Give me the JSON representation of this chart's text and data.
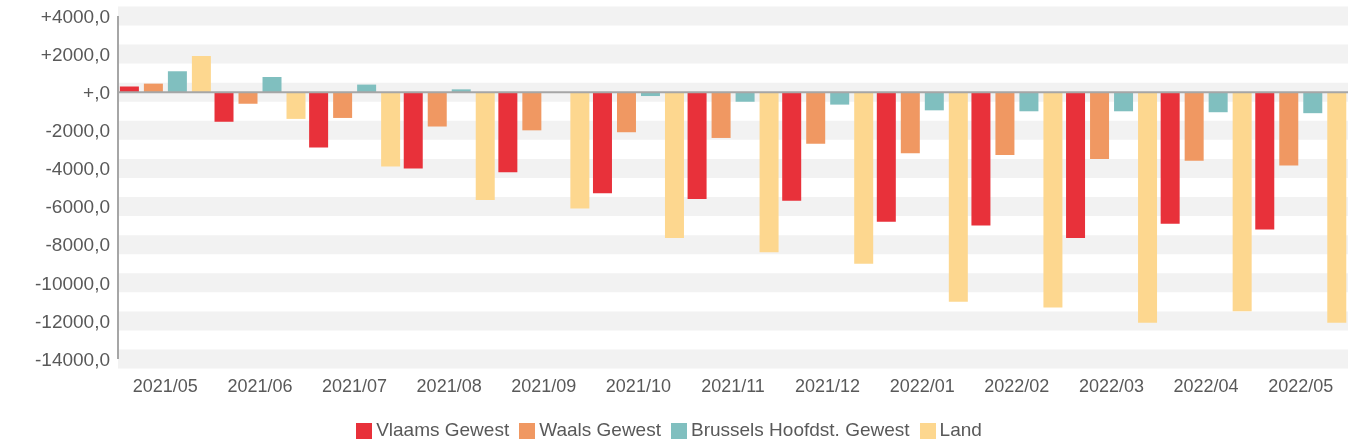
{
  "chart_data": {
    "type": "bar",
    "categories": [
      "2021/05",
      "2021/06",
      "2021/07",
      "2021/08",
      "2021/09",
      "2021/10",
      "2021/11",
      "2021/12",
      "2022/01",
      "2022/02",
      "2022/03",
      "2022/04",
      "2022/05"
    ],
    "series": [
      {
        "name": "Vlaams Gewest",
        "color": "#e8313a",
        "values": [
          300,
          -1550,
          -2900,
          -4000,
          -4200,
          -5300,
          -5600,
          -5700,
          -6800,
          -7000,
          -7650,
          -6900,
          -7200
        ]
      },
      {
        "name": "Waals Gewest",
        "color": "#f09862",
        "values": [
          450,
          -600,
          -1350,
          -1800,
          -2000,
          -2100,
          -2400,
          -2700,
          -3200,
          -3300,
          -3500,
          -3600,
          -3850
        ]
      },
      {
        "name": "Brussels Hoofdst. Gewest",
        "color": "#80bfbf",
        "values": [
          1100,
          800,
          400,
          150,
          0,
          -200,
          -500,
          -650,
          -950,
          -1000,
          -1000,
          -1050,
          -1100
        ]
      },
      {
        "name": "Land",
        "color": "#fdd78f",
        "values": [
          1900,
          -1400,
          -3900,
          -5650,
          -6100,
          -7650,
          -8400,
          -9000,
          -11000,
          -11300,
          -12100,
          -11500,
          -12100
        ]
      }
    ],
    "ylim": [
      -14000,
      4000
    ],
    "yticks": [
      {
        "value": 4000,
        "label": "+4000,0"
      },
      {
        "value": 2000,
        "label": "+2000,0"
      },
      {
        "value": 0,
        "label": "+,0"
      },
      {
        "value": -2000,
        "label": "-2000,0"
      },
      {
        "value": -4000,
        "label": "-4000,0"
      },
      {
        "value": -6000,
        "label": "-6000,0"
      },
      {
        "value": -8000,
        "label": "-8000,0"
      },
      {
        "value": -10000,
        "label": "-10000,0"
      },
      {
        "value": -12000,
        "label": "-12000,0"
      },
      {
        "value": -14000,
        "label": "-14000,0"
      }
    ],
    "grid": "y",
    "legend": "bottom"
  }
}
